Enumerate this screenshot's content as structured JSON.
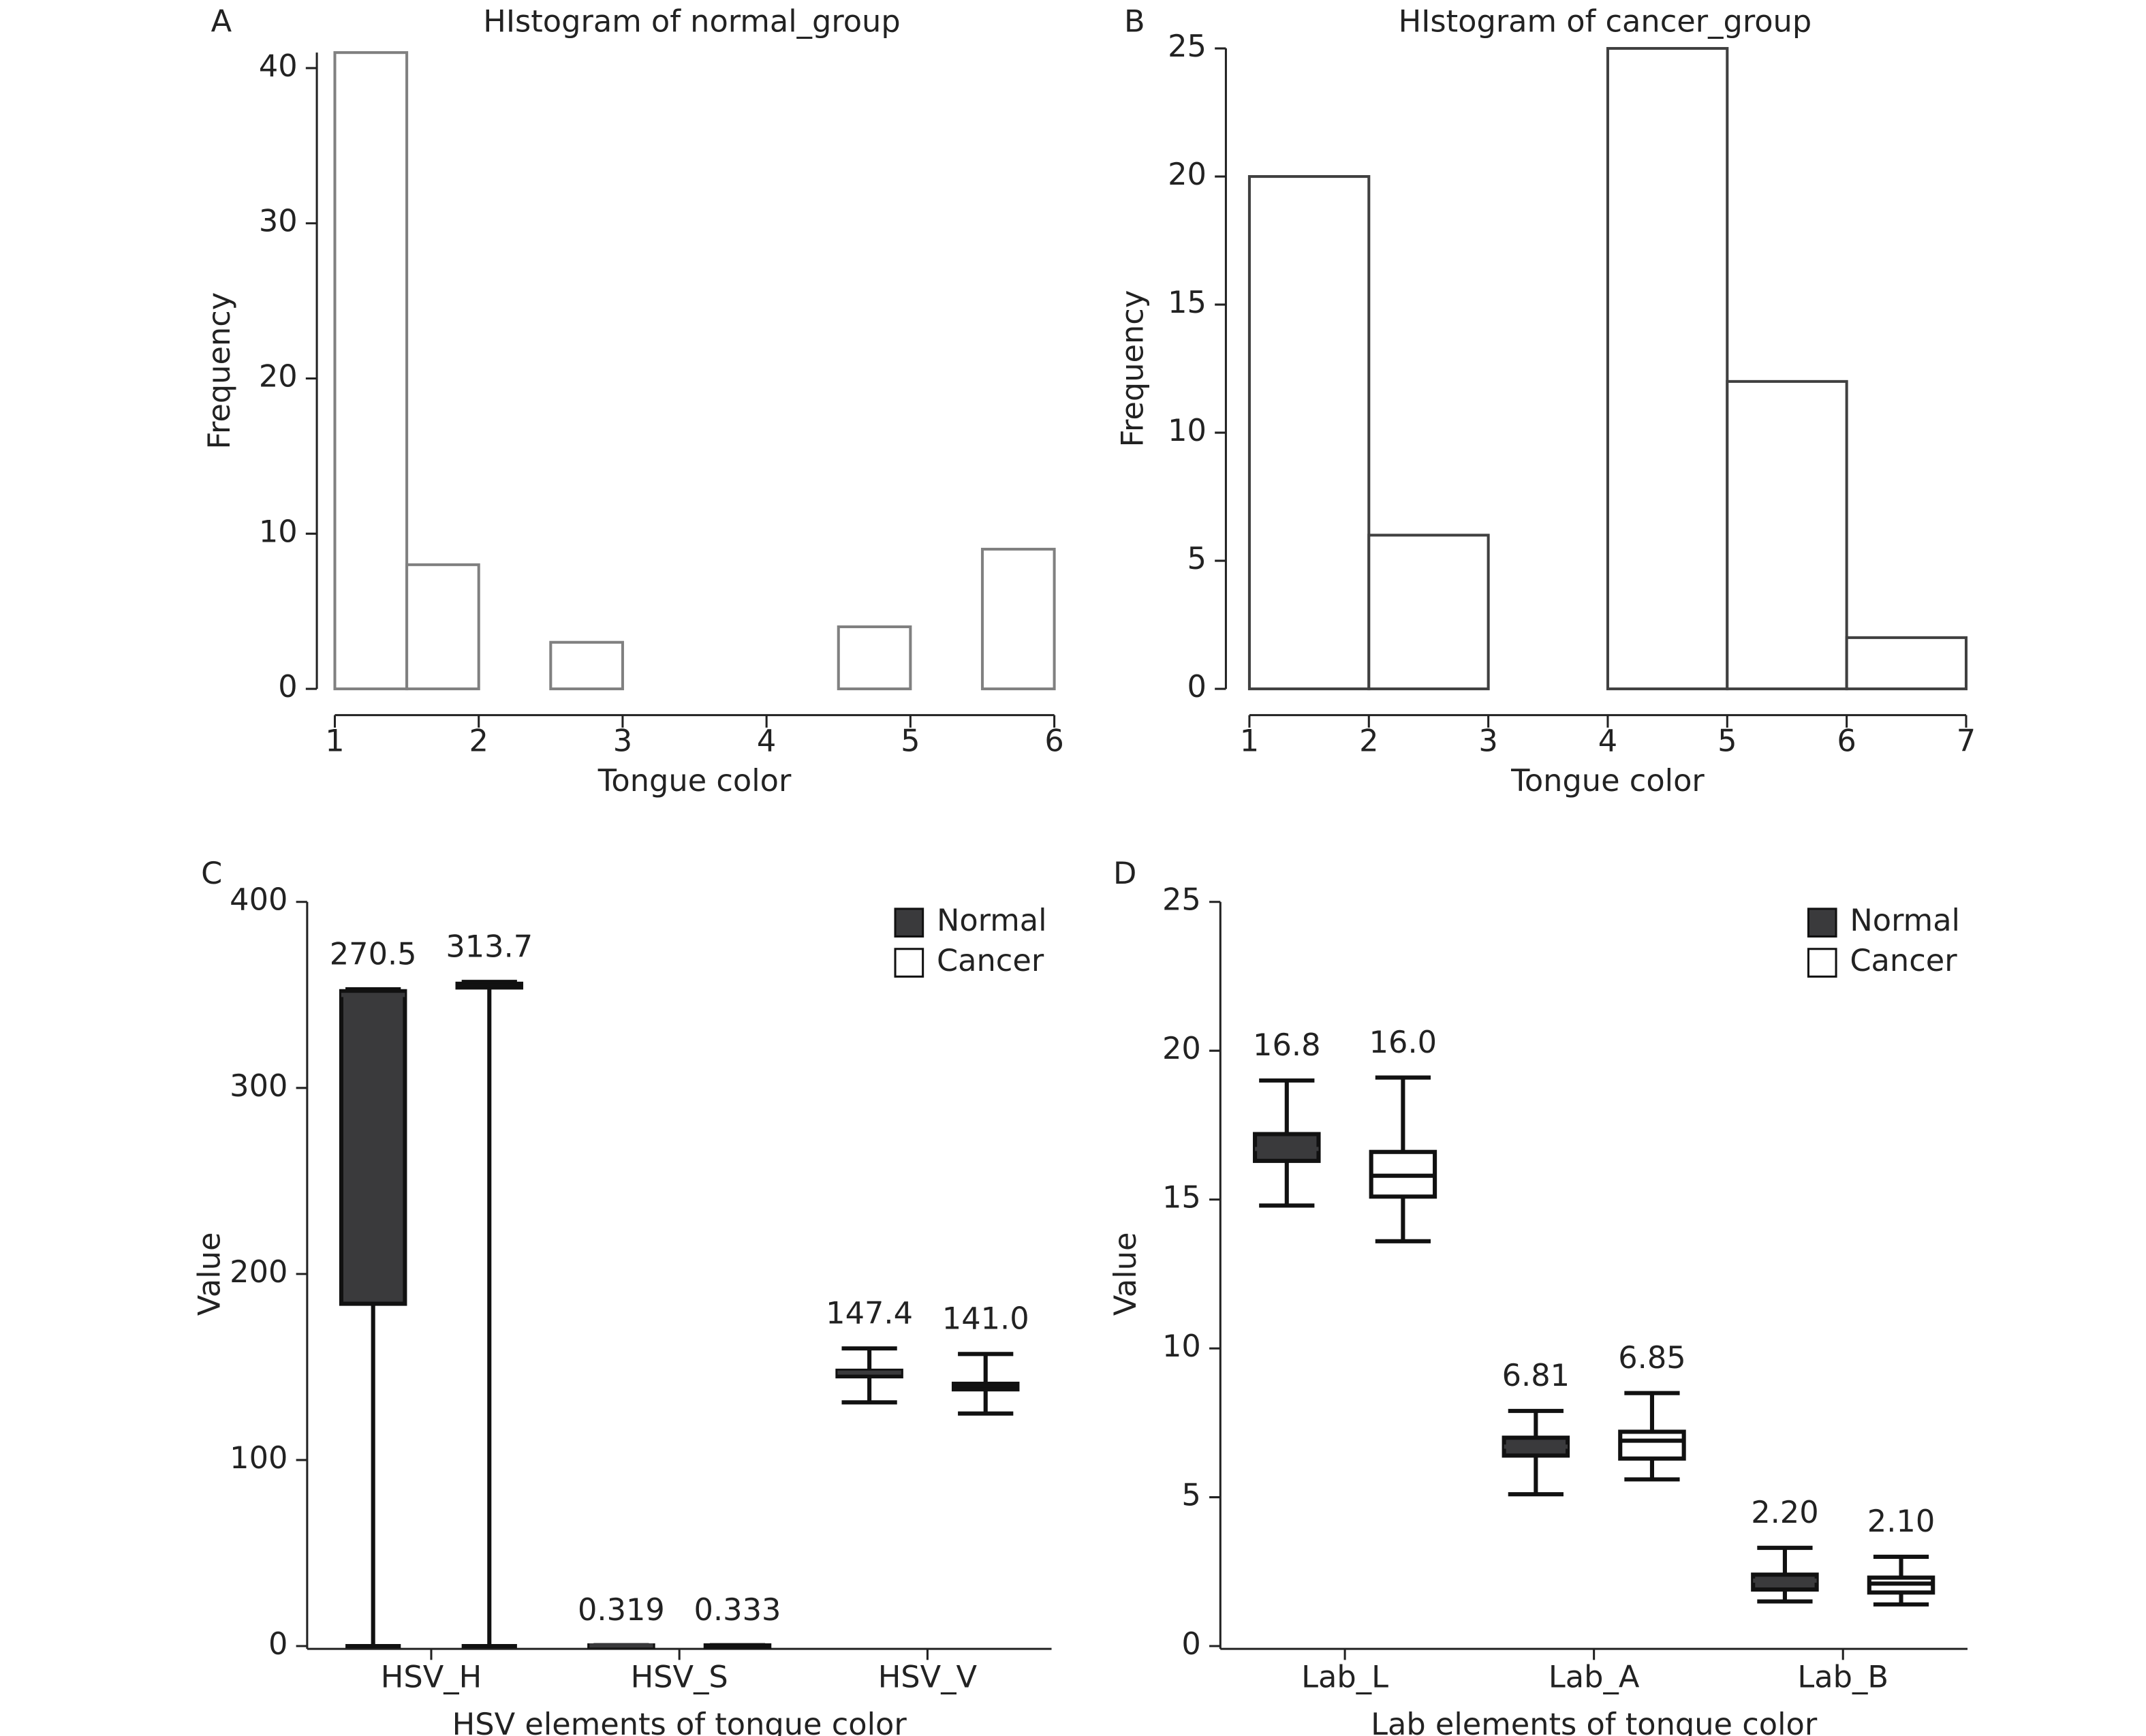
{
  "chart_data": [
    {
      "type": "histogram",
      "panel": "A",
      "title": "HIstogram of normal_group",
      "x_label": "Tongue color",
      "y_label": "Frequency",
      "bins": [
        1,
        1.5,
        2,
        2.5,
        3,
        3.5,
        4,
        4.5,
        5,
        5.5,
        6
      ],
      "counts": [
        41,
        8,
        0,
        3,
        0,
        0,
        0,
        4,
        0,
        9
      ],
      "color": "#808080",
      "xlim": [
        1,
        6
      ],
      "xticks": [
        1,
        2,
        3,
        4,
        5,
        6
      ],
      "ylim": [
        0,
        41
      ],
      "yticks": [
        0,
        10,
        20,
        30,
        40
      ]
    },
    {
      "type": "histogram",
      "panel": "B",
      "title": "HIstogram of cancer_group",
      "x_label": "Tongue color",
      "y_label": "Frequency",
      "bins": [
        1,
        2,
        3,
        4,
        5,
        6,
        7
      ],
      "counts": [
        20,
        6,
        0,
        25,
        12,
        2
      ],
      "color": "#404040",
      "xlim": [
        1,
        7
      ],
      "xticks": [
        1,
        2,
        3,
        4,
        5,
        6,
        7
      ],
      "ylim": [
        0,
        25
      ],
      "yticks": [
        0,
        5,
        10,
        15,
        20,
        25
      ]
    },
    {
      "type": "box",
      "panel": "C",
      "x_label": "HSV elements of tongue color",
      "y_label": "Value",
      "categories": [
        "HSV_H",
        "HSV_S",
        "HSV_V"
      ],
      "ylim": [
        0,
        400
      ],
      "yticks": [
        0,
        100,
        200,
        300,
        400
      ],
      "legend": "upper right",
      "series": [
        {
          "name": "Normal",
          "color": "#3a3a3c",
          "min": [
            0,
            0.2,
            131
          ],
          "q1": [
            184,
            0.28,
            145
          ],
          "median": [
            350,
            0.32,
            147
          ],
          "q3": [
            352,
            0.36,
            148
          ],
          "max": [
            353,
            0.5,
            160
          ],
          "value_labels": [
            "270.5",
            "0.319",
            "147.4"
          ]
        },
        {
          "name": "Cancer",
          "color": "#ffffff",
          "min": [
            0,
            0.2,
            125
          ],
          "q1": [
            354,
            0.29,
            138
          ],
          "median": [
            355,
            0.33,
            140
          ],
          "q3": [
            356,
            0.37,
            141
          ],
          "max": [
            357,
            0.5,
            157
          ],
          "value_labels": [
            "313.7",
            "0.333",
            "141.0"
          ]
        }
      ]
    },
    {
      "type": "box",
      "panel": "D",
      "x_label": "Lab elements of tongue color",
      "y_label": "Value",
      "categories": [
        "Lab_L",
        "Lab_A",
        "Lab_B"
      ],
      "ylim": [
        0,
        25
      ],
      "yticks": [
        0,
        5,
        10,
        15,
        20,
        25
      ],
      "legend": "upper right",
      "series": [
        {
          "name": "Normal",
          "color": "#3a3a3c",
          "min": [
            14.8,
            5.1,
            1.5
          ],
          "q1": [
            16.3,
            6.4,
            1.9
          ],
          "median": [
            16.7,
            6.7,
            2.2
          ],
          "q3": [
            17.2,
            7.0,
            2.4
          ],
          "max": [
            19.0,
            7.9,
            3.3
          ],
          "value_labels": [
            "16.8",
            "6.81",
            "2.20"
          ]
        },
        {
          "name": "Cancer",
          "color": "#ffffff",
          "min": [
            13.6,
            5.6,
            1.4
          ],
          "q1": [
            15.1,
            6.3,
            1.8
          ],
          "median": [
            15.8,
            6.9,
            2.1
          ],
          "q3": [
            16.6,
            7.2,
            2.3
          ],
          "max": [
            19.1,
            8.5,
            3.0
          ],
          "value_labels": [
            "16.0",
            "6.85",
            "2.10"
          ]
        }
      ]
    }
  ]
}
